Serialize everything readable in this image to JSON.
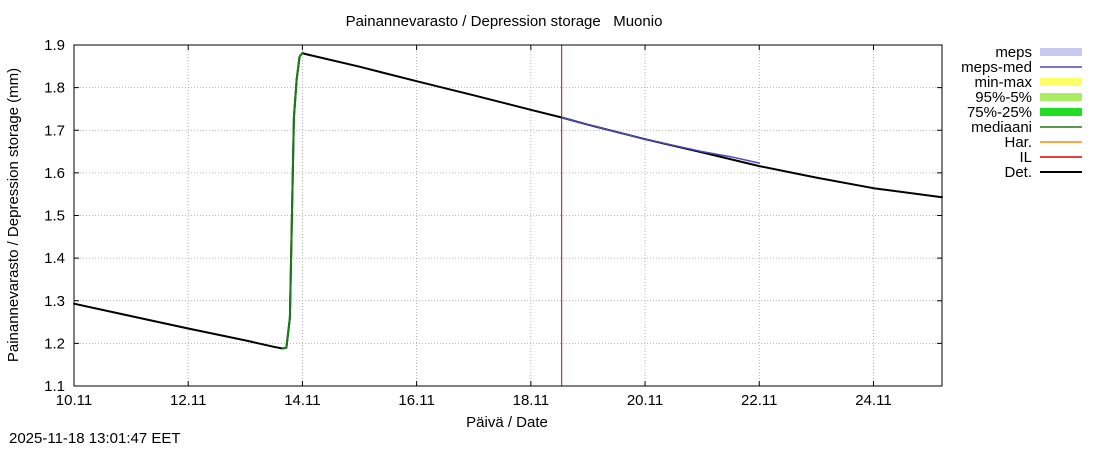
{
  "chart_data": {
    "type": "line",
    "title": "Painannevarasto / Depression storage   Muonio",
    "xlabel": "Päivä / Date",
    "ylabel": "Painannevarasto / Depression storage (mm)",
    "xlim": [
      10.0,
      25.2
    ],
    "ylim": [
      1.1,
      1.9
    ],
    "x_unit": "days of November 2025",
    "x_ticks": [
      10,
      12,
      14,
      16,
      18,
      20,
      22,
      24
    ],
    "x_tick_labels": [
      "10.11",
      "12.11",
      "14.11",
      "16.11",
      "18.11",
      "20.11",
      "22.11",
      "24.11"
    ],
    "y_ticks": [
      1.1,
      1.2,
      1.3,
      1.4,
      1.5,
      1.6,
      1.7,
      1.8,
      1.9
    ],
    "y_tick_labels": [
      "1.1",
      "1.2",
      "1.3",
      "1.4",
      "1.5",
      "1.6",
      "1.7",
      "1.8",
      "1.9"
    ],
    "grid": true,
    "legend_position": "right",
    "legend": [
      {
        "name": "meps",
        "color": "#c8c8f0",
        "style": "band"
      },
      {
        "name": "meps-med",
        "color": "#4b4bb4",
        "style": "line"
      },
      {
        "name": "min-max",
        "color": "#ffff66",
        "style": "band"
      },
      {
        "name": "95%-5%",
        "color": "#aaee66",
        "style": "band"
      },
      {
        "name": "75%-25%",
        "color": "#22dd22",
        "style": "band"
      },
      {
        "name": "mediaani",
        "color": "#1a7a1a",
        "style": "line"
      },
      {
        "name": "Har.",
        "color": "#ff8800",
        "style": "line"
      },
      {
        "name": "IL",
        "color": "#dd0000",
        "style": "line"
      },
      {
        "name": "Det.",
        "color": "#000000",
        "style": "line"
      }
    ],
    "vline_x": 18.54,
    "vline_color": "#cc0000",
    "series": [
      {
        "name": "Det.",
        "color": "#000000",
        "x": [
          10.0,
          11.0,
          12.0,
          13.0,
          13.5,
          13.65,
          13.72,
          13.78,
          13.85,
          13.9,
          13.95,
          14.0,
          14.05,
          15.0,
          16.0,
          17.0,
          18.0,
          18.54,
          19.0,
          20.0,
          21.0,
          22.0,
          23.0,
          24.0,
          25.2
        ],
        "y": [
          1.293,
          1.264,
          1.235,
          1.207,
          1.192,
          1.188,
          1.19,
          1.26,
          1.73,
          1.82,
          1.873,
          1.881,
          1.879,
          1.849,
          1.815,
          1.782,
          1.748,
          1.73,
          1.713,
          1.679,
          1.648,
          1.616,
          1.589,
          1.564,
          1.543
        ]
      },
      {
        "name": "mediaani",
        "color": "#1a7a1a",
        "x": [
          13.65,
          13.72,
          13.78,
          13.85,
          13.9,
          13.95,
          14.0
        ],
        "y": [
          1.188,
          1.19,
          1.26,
          1.73,
          1.82,
          1.873,
          1.881
        ]
      },
      {
        "name": "meps-med",
        "color": "#4b4bb4",
        "x": [
          18.54,
          19.0,
          20.0,
          21.0,
          21.5,
          22.0
        ],
        "y": [
          1.73,
          1.713,
          1.679,
          1.65,
          1.638,
          1.623
        ]
      }
    ],
    "timestamp": "2025-11-18 13:01:47 EET"
  }
}
